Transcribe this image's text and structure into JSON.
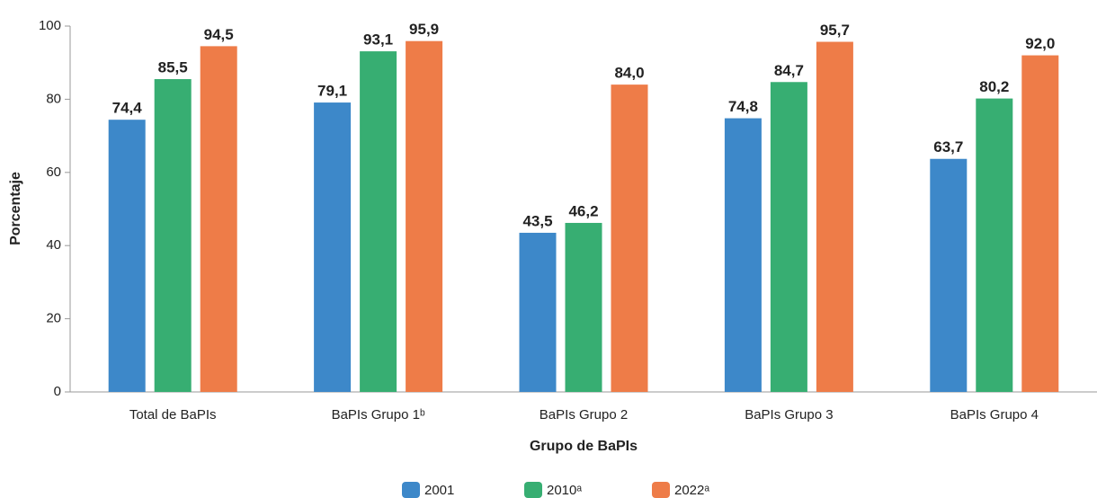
{
  "chart_data": {
    "type": "bar",
    "x_label": "Grupo de BaPIs",
    "y_label": "Porcentaje",
    "categories": [
      "Total de BaPIs",
      "BaPIs Grupo 1ᵇ",
      "BaPIs Grupo 2",
      "BaPIs Grupo 3",
      "BaPIs Grupo 4"
    ],
    "series": [
      {
        "name": "2001",
        "color": "#3d88c9",
        "values": [
          74.4,
          79.1,
          43.5,
          74.8,
          63.7
        ],
        "value_labels": [
          "74,4",
          "79,1",
          "43,5",
          "74,8",
          "63,7"
        ]
      },
      {
        "name": "2010ᵃ",
        "color": "#37ae72",
        "values": [
          85.5,
          93.1,
          46.2,
          84.7,
          80.2
        ],
        "value_labels": [
          "85,5",
          "93,1",
          "46,2",
          "84,7",
          "80,2"
        ]
      },
      {
        "name": "2022ᵃ",
        "color": "#ee7c48",
        "values": [
          94.5,
          95.9,
          84.0,
          95.7,
          92.0
        ],
        "value_labels": [
          "94,5",
          "95,9",
          "84,0",
          "95,7",
          "92,0"
        ]
      }
    ],
    "ylim": [
      0,
      100
    ],
    "yticks": [
      0,
      20,
      40,
      60,
      80,
      100
    ],
    "grid": false,
    "legend": "bottom"
  }
}
